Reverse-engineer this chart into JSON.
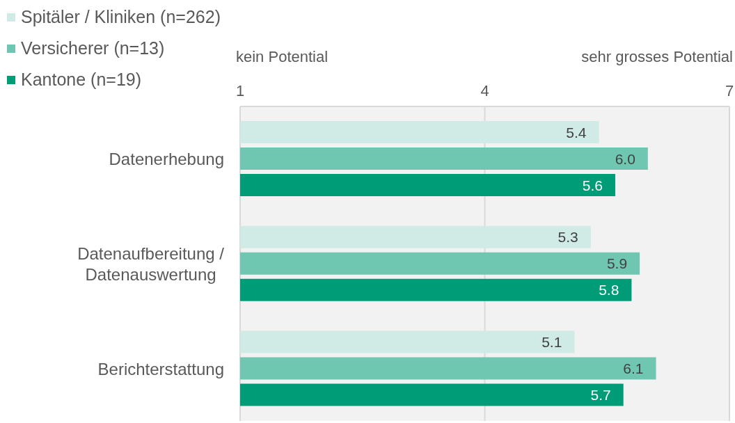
{
  "chart_data": {
    "type": "bar",
    "orientation": "horizontal",
    "categories": [
      "Datenerhebung",
      "Datenaufbereitung / Datenauswertung",
      "Berichterstattung"
    ],
    "series": [
      {
        "name": "Spitäler / Kliniken (n=262)",
        "color": "#d0ebe5",
        "values": [
          5.4,
          5.3,
          5.1
        ],
        "value_labels": [
          "5.4",
          "5.3",
          "5.1"
        ]
      },
      {
        "name": "Versicherer (n=13)",
        "color": "#6fc6b1",
        "values": [
          6.0,
          5.9,
          6.1
        ],
        "value_labels": [
          "6.0",
          "5.9",
          "6.1"
        ]
      },
      {
        "name": "Kantone (n=19)",
        "color": "#009b77",
        "values": [
          5.6,
          5.8,
          5.7
        ],
        "value_labels": [
          "5.6",
          "5.8",
          "5.7"
        ]
      }
    ],
    "xlim": [
      1,
      7
    ],
    "xticks": [
      1,
      4,
      7
    ],
    "grid": "x",
    "legend": "top left",
    "annotations": [
      "kein Potential",
      "sehr grosses Potential"
    ]
  }
}
